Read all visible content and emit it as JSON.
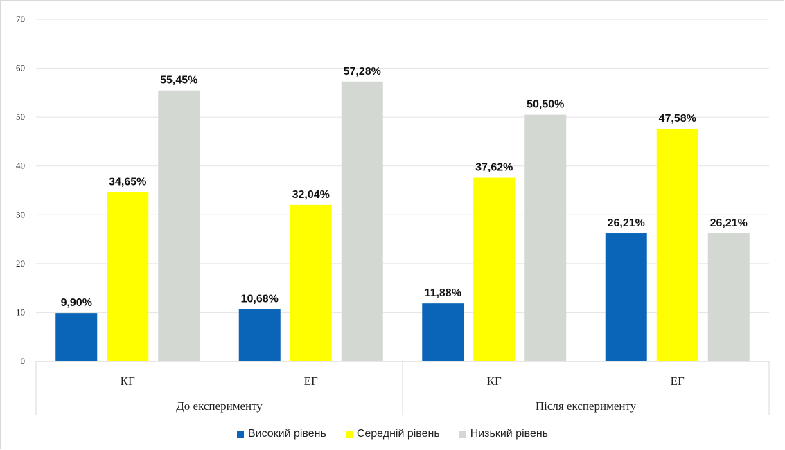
{
  "chart_data": {
    "type": "bar",
    "title": "",
    "xlabel": "",
    "ylabel": "",
    "ylim": [
      0,
      70
    ],
    "yticks": [
      0,
      10,
      20,
      30,
      40,
      50,
      60,
      70
    ],
    "grid": true,
    "legend_position": "bottom",
    "groups": [
      {
        "label": "До експерименту",
        "categories": [
          {
            "label": "КГ",
            "values": [
              9.9,
              34.65,
              55.45
            ],
            "value_labels": [
              "9,90%",
              "34,65%",
              "55,45%"
            ]
          },
          {
            "label": "ЕГ",
            "values": [
              10.68,
              32.04,
              57.28
            ],
            "value_labels": [
              "10,68%",
              "32,04%",
              "57,28%"
            ]
          }
        ]
      },
      {
        "label": "Після експерименту",
        "categories": [
          {
            "label": "КГ",
            "values": [
              11.88,
              37.62,
              50.5
            ],
            "value_labels": [
              "11,88%",
              "37,62%",
              "50,50%"
            ]
          },
          {
            "label": "ЕГ",
            "values": [
              26.21,
              47.58,
              26.21
            ],
            "value_labels": [
              "26,21%",
              "47,58%",
              "26,21%"
            ]
          }
        ]
      }
    ],
    "series": [
      {
        "name": "Високий рівень",
        "color": "#0a65b8"
      },
      {
        "name": "Середній рівень",
        "color": "#ffff00"
      },
      {
        "name": "Низький рівень",
        "color": "#d3d8d2"
      }
    ]
  },
  "legend": {
    "items": [
      {
        "label": "Високий рівень",
        "color": "#0a65b8"
      },
      {
        "label": "Середній рівень",
        "color": "#ffff00"
      },
      {
        "label": "Низький рівень",
        "color": "#d3d8d2"
      }
    ]
  }
}
